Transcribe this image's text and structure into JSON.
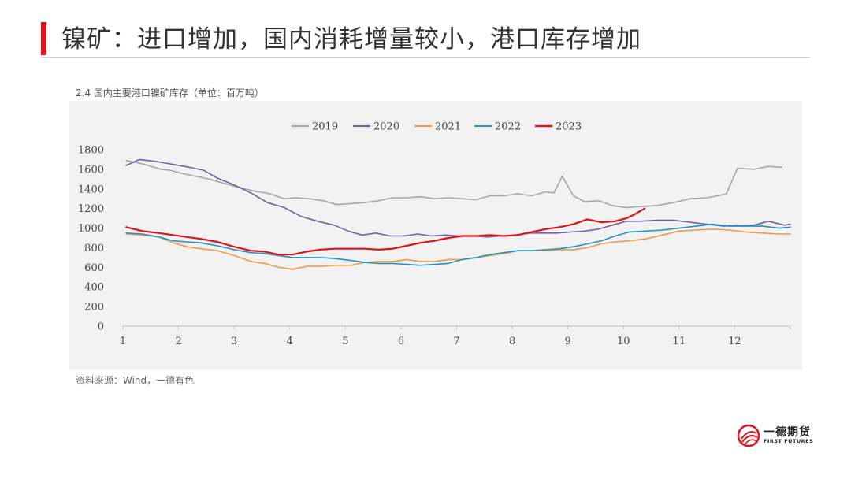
{
  "slide": {
    "title": "镍矿：进口增加，国内消耗增量较小，港口库存增加",
    "chart_caption": "2.4 国内主要港口镍矿库存（单位：百万吨）",
    "source": "资料来源：Wind，一德有色"
  },
  "logo": {
    "name_cn": "一德期货",
    "name_en": "FIRST FUTURES"
  },
  "colors": {
    "accent": "#e0121c",
    "2019": "#a6a6a6",
    "2020": "#7461a3",
    "2021": "#ee9a4a",
    "2022": "#1f95c4",
    "2023": "#d9141b"
  },
  "chart_data": {
    "type": "line",
    "ylim": [
      0,
      1800
    ],
    "yticks": [
      0,
      200,
      400,
      600,
      800,
      1000,
      1200,
      1400,
      1600,
      1800
    ],
    "xlim": [
      1,
      13
    ],
    "xticks": [
      1,
      2,
      3,
      4,
      5,
      6,
      7,
      8,
      9,
      10,
      11,
      12
    ],
    "grid": false,
    "legend_position": "top",
    "series": [
      {
        "name": "2019",
        "x": [
          1.06,
          1.25,
          1.45,
          1.68,
          1.85,
          2.05,
          2.3,
          2.55,
          2.8,
          3.05,
          3.35,
          3.65,
          3.9,
          4.1,
          4.35,
          4.6,
          4.85,
          5.1,
          5.35,
          5.6,
          5.85,
          6.1,
          6.35,
          6.6,
          6.85,
          7.1,
          7.35,
          7.6,
          7.85,
          8.1,
          8.35,
          8.6,
          8.75,
          8.9,
          9.1,
          9.3,
          9.55,
          9.8,
          10.05,
          10.3,
          10.6,
          10.9,
          11.2,
          11.5,
          11.7,
          11.85,
          12.05,
          12.35,
          12.6,
          12.85
        ],
        "values": [
          1690,
          1670,
          1640,
          1600,
          1590,
          1560,
          1530,
          1500,
          1460,
          1420,
          1380,
          1350,
          1300,
          1310,
          1300,
          1280,
          1240,
          1250,
          1260,
          1280,
          1310,
          1310,
          1320,
          1300,
          1310,
          1300,
          1290,
          1330,
          1330,
          1350,
          1330,
          1370,
          1360,
          1530,
          1330,
          1270,
          1280,
          1230,
          1210,
          1220,
          1230,
          1260,
          1300,
          1310,
          1330,
          1350,
          1610,
          1600,
          1630,
          1620
        ]
      },
      {
        "name": "2020",
        "x": [
          1.06,
          1.3,
          1.6,
          1.9,
          2.2,
          2.45,
          2.7,
          3.0,
          3.3,
          3.6,
          3.9,
          4.2,
          4.5,
          4.8,
          5.05,
          5.3,
          5.55,
          5.8,
          6.05,
          6.3,
          6.55,
          6.8,
          7.05,
          7.3,
          7.55,
          7.8,
          8.05,
          8.3,
          8.55,
          8.8,
          9.05,
          9.3,
          9.55,
          9.8,
          10.05,
          10.3,
          10.6,
          10.9,
          11.2,
          11.5,
          11.8,
          12.1,
          12.35,
          12.6,
          12.9,
          13.0
        ],
        "values": [
          1640,
          1700,
          1680,
          1650,
          1620,
          1590,
          1510,
          1440,
          1360,
          1260,
          1210,
          1120,
          1070,
          1030,
          970,
          930,
          950,
          920,
          920,
          940,
          920,
          930,
          920,
          920,
          910,
          920,
          930,
          950,
          950,
          950,
          960,
          970,
          990,
          1030,
          1070,
          1070,
          1080,
          1080,
          1060,
          1040,
          1020,
          1030,
          1030,
          1070,
          1030,
          1040
        ]
      },
      {
        "name": "2021",
        "x": [
          1.06,
          1.35,
          1.65,
          1.9,
          2.15,
          2.4,
          2.7,
          3.0,
          3.3,
          3.55,
          3.8,
          4.05,
          4.3,
          4.55,
          4.8,
          5.1,
          5.35,
          5.6,
          5.85,
          6.1,
          6.35,
          6.6,
          6.85,
          7.1,
          7.35,
          7.6,
          7.85,
          8.1,
          8.35,
          8.6,
          8.85,
          9.1,
          9.35,
          9.6,
          9.85,
          10.1,
          10.4,
          10.7,
          11.0,
          11.3,
          11.6,
          11.9,
          12.2,
          12.5,
          12.8,
          13.0
        ],
        "values": [
          940,
          930,
          910,
          850,
          810,
          790,
          770,
          720,
          660,
          640,
          600,
          580,
          610,
          610,
          620,
          620,
          650,
          660,
          660,
          680,
          660,
          660,
          680,
          680,
          700,
          720,
          740,
          770,
          770,
          770,
          780,
          780,
          800,
          840,
          860,
          870,
          890,
          930,
          970,
          980,
          990,
          980,
          960,
          950,
          940,
          940
        ]
      },
      {
        "name": "2022",
        "x": [
          1.06,
          1.35,
          1.65,
          1.9,
          2.15,
          2.4,
          2.7,
          3.0,
          3.3,
          3.55,
          3.8,
          4.05,
          4.3,
          4.55,
          4.8,
          5.1,
          5.35,
          5.6,
          5.85,
          6.1,
          6.35,
          6.6,
          6.85,
          7.1,
          7.35,
          7.6,
          7.85,
          8.1,
          8.35,
          8.6,
          8.85,
          9.1,
          9.35,
          9.6,
          9.85,
          10.1,
          10.4,
          10.7,
          11.0,
          11.3,
          11.6,
          11.9,
          12.2,
          12.5,
          12.8,
          13.0
        ],
        "values": [
          950,
          940,
          910,
          870,
          860,
          850,
          820,
          780,
          750,
          740,
          720,
          700,
          700,
          700,
          690,
          670,
          650,
          640,
          640,
          630,
          620,
          630,
          640,
          680,
          700,
          730,
          750,
          770,
          770,
          780,
          790,
          810,
          840,
          870,
          920,
          960,
          970,
          980,
          1000,
          1020,
          1040,
          1020,
          1020,
          1020,
          1000,
          1010
        ]
      },
      {
        "name": "2023",
        "x": [
          1.06,
          1.35,
          1.65,
          1.9,
          2.15,
          2.4,
          2.7,
          3.0,
          3.3,
          3.55,
          3.8,
          4.05,
          4.3,
          4.55,
          4.8,
          5.1,
          5.35,
          5.6,
          5.85,
          6.1,
          6.35,
          6.6,
          6.85,
          7.1,
          7.35,
          7.6,
          7.85,
          8.1,
          8.35,
          8.6,
          8.85,
          9.1,
          9.35,
          9.6,
          9.85,
          10.05,
          10.2,
          10.38
        ],
        "values": [
          1010,
          970,
          950,
          930,
          910,
          890,
          860,
          810,
          770,
          760,
          730,
          730,
          760,
          780,
          790,
          790,
          790,
          780,
          790,
          820,
          850,
          870,
          900,
          920,
          920,
          930,
          920,
          930,
          960,
          990,
          1010,
          1040,
          1090,
          1060,
          1070,
          1100,
          1140,
          1200
        ]
      }
    ]
  }
}
